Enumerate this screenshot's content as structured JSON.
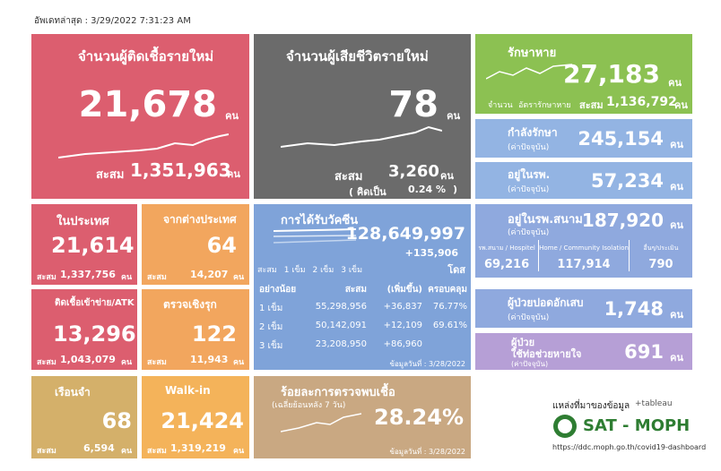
{
  "header": {
    "updated": "อัพเดทล่าสุด : 3/29/2022 7:31:23 AM"
  },
  "new_cases": {
    "title": "จำนวนผู้ติดเชื้อรายใหม่",
    "value": "21,678",
    "unit": "คน",
    "total_label": "สะสม",
    "total": "1,351,963",
    "total_unit": "คน"
  },
  "new_deaths": {
    "title": "จำนวนผู้เสียชีวิตรายใหม่",
    "value": "78",
    "unit": "คน",
    "total_label": "สะสม",
    "total": "3,260",
    "total_unit": "คน",
    "rate_open": "( คิดเป็น",
    "rate": "0.24 %",
    "rate_close": ")"
  },
  "recovered": {
    "title": "รักษาหาย",
    "value": "27,183",
    "unit": "คน",
    "legend_count": "จำนวน",
    "legend_rate": "อัตรารักษาหาย",
    "total_label": "สะสม",
    "total": "1,136,792",
    "total_unit": "คน"
  },
  "treating": {
    "title": "กำลังรักษา",
    "note": "(ค่าปัจจุบัน)",
    "value": "245,154",
    "unit": "คน"
  },
  "hospital": {
    "title": "อยู่ในรพ.",
    "note": "(ค่าปัจจุบัน)",
    "value": "57,234",
    "unit": "คน"
  },
  "domestic": {
    "title": "ในประเทศ",
    "value": "21,614",
    "total_label": "สะสม",
    "total": "1,337,756",
    "total_unit": "คน"
  },
  "abroad": {
    "title": "จากต่างประเทศ",
    "value": "64",
    "total_label": "สะสม",
    "total": "14,207",
    "total_unit": "คน"
  },
  "atk": {
    "title": "ติดเชื้อเข้าข่าย/ATK",
    "value": "13,296",
    "total_label": "สะสม",
    "total": "1,043,079",
    "total_unit": "คน"
  },
  "proactive": {
    "title": "ตรวจเชิงรุก",
    "value": "122",
    "total_label": "สะสม",
    "total": "11,943",
    "total_unit": "คน"
  },
  "prison": {
    "title": "เรือนจำ",
    "value": "68",
    "total_label": "สะสม",
    "total": "6,594",
    "total_unit": "คน"
  },
  "walkin": {
    "title": "Walk-in",
    "value": "21,424",
    "total_label": "สะสม",
    "total": "1,319,219",
    "total_unit": "คน"
  },
  "vaccine": {
    "title": "การได้รับวัคซีน",
    "total": "128,649,997",
    "increase": "+135,906",
    "unit": "โดส",
    "legend": [
      "สะสม",
      "1 เข็ม",
      "2 เข็ม",
      "3 เข็ม"
    ],
    "table": {
      "header": [
        "อย่างน้อย",
        "สะสม",
        "(เพิ่มขึ้น)",
        "ครอบคลุม"
      ],
      "rows": [
        [
          "1 เข็ม",
          "55,298,956",
          "+36,837",
          "76.77%"
        ],
        [
          "2 เข็ม",
          "50,142,091",
          "+12,109",
          "69.61%"
        ],
        [
          "3 เข็ม",
          "23,208,950",
          "+86,960"
        ]
      ]
    },
    "date": "ข้อมูลวันที่ : 3/28/2022"
  },
  "positive_rate": {
    "title": "ร้อยละการตรวจพบเชื้อ",
    "note": "(เฉลี่ยย้อนหลัง 7 วัน)",
    "value": "28.24%",
    "date": "ข้อมูลวันที่ : 3/28/2022"
  },
  "field_hospital": {
    "title": "อยู่ในรพ.สนาม",
    "note": "(ค่าปัจจุบัน)",
    "value": "187,920",
    "unit": "คน",
    "parts": [
      {
        "label": "รพ.สนาม / Hospitel",
        "value": "69,216"
      },
      {
        "label": "Home / Community Isolation",
        "value": "117,914"
      },
      {
        "label": "อื่นๆ/ประเมิน",
        "value": "790"
      }
    ]
  },
  "pneumonia": {
    "title": "ผู้ป่วยปอดอักเสบ",
    "note": "(ค่าปัจจุบัน)",
    "value": "1,748",
    "unit": "คน"
  },
  "ventilator": {
    "title": "ผู้ป่วย",
    "title2": "ใช้ท่อช่วยหายใจ",
    "note": "(ค่าปัจจุบัน)",
    "value": "691",
    "unit": "คน"
  },
  "source": {
    "label": "แหล่งที่มาของข้อมูล",
    "tableau": "+tableau",
    "org": "SAT - MOPH",
    "url": "https://ddc.moph.go.th/covid19-dashboard"
  }
}
